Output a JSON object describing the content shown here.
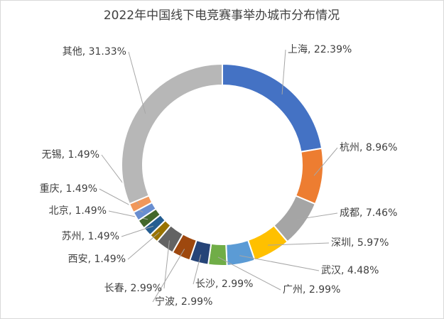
{
  "chart_data": {
    "type": "donut",
    "title": "2022年中国线下电竞赛事举办城市分布情况",
    "categories": [
      "上海",
      "杭州",
      "成都",
      "深圳",
      "武汉",
      "广州",
      "长沙",
      "宁波",
      "长春",
      "西安",
      "苏州",
      "北京",
      "重庆",
      "无锡",
      "其他"
    ],
    "values": [
      22.39,
      8.96,
      7.46,
      5.97,
      4.48,
      2.99,
      2.99,
      2.99,
      2.99,
      1.49,
      1.49,
      1.49,
      1.49,
      1.49,
      31.33
    ],
    "value_labels": [
      "上海, 22.39%",
      "杭州, 8.96%",
      "成都, 7.46%",
      "深圳, 5.97%",
      "武汉, 4.48%",
      "广州, 2.99%",
      "长沙, 2.99%",
      "宁波, 2.99%",
      "长春, 2.99%",
      "西安, 1.49%",
      "苏州, 1.49%",
      "北京, 1.49%",
      "重庆, 1.49%",
      "无锡, 1.49%",
      "其他, 31.33%"
    ],
    "colors": [
      "#4472c4",
      "#ed7d31",
      "#a5a5a5",
      "#ffc000",
      "#5b9bd5",
      "#70ad47",
      "#264478",
      "#9e480e",
      "#636363",
      "#997300",
      "#255e91",
      "#43682b",
      "#698ed0",
      "#f1975a",
      "#b7b7b7"
    ]
  }
}
